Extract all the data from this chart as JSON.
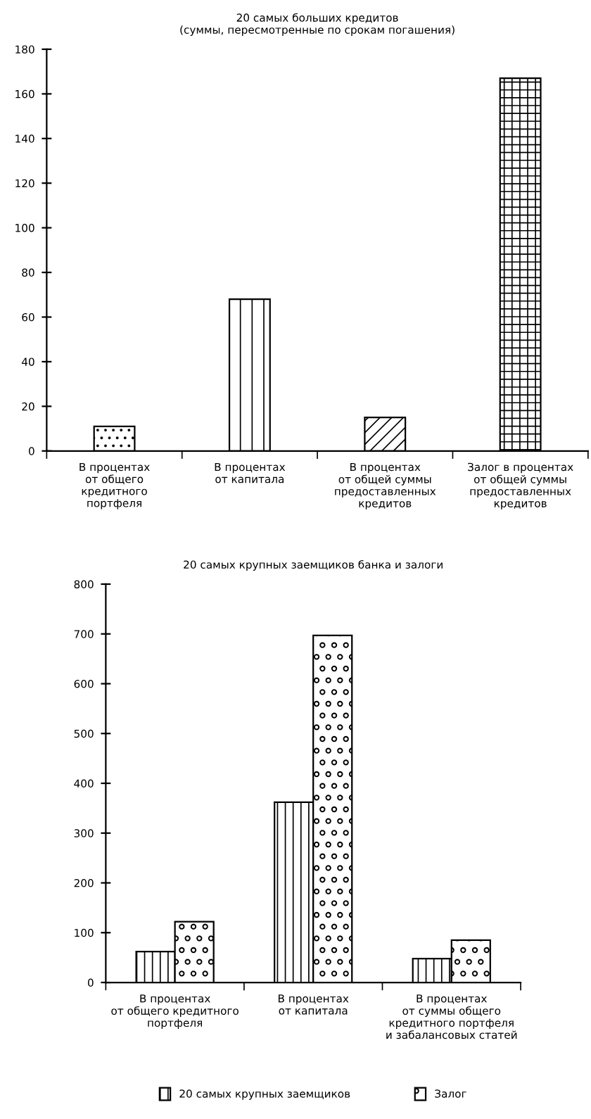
{
  "chart_data": [
    {
      "type": "bar",
      "title": "20 самых больших кредитов\n(суммы, пересмотренные по срокам погашения)",
      "categories": [
        "В процентах\nот общего\nкредитного\nпортфеля",
        "В процентах\nот капитала",
        "В процентах\nот общей суммы\nпредоставленных\nкредитов",
        "Залог в процентах\nот общей суммы\nпредоставленных\nкредитов"
      ],
      "values": [
        11,
        68,
        15,
        167
      ],
      "color": "#000000",
      "ylim": [
        0,
        180
      ],
      "yticks": [
        0,
        20,
        40,
        60,
        80,
        100,
        120,
        140,
        160,
        180
      ],
      "grid": false,
      "legend": false
    },
    {
      "type": "bar",
      "title": "20 самых крупных заемщиков банка и залоги",
      "categories": [
        "В процентах\nот общего кредитного\nпортфеля",
        "В процентах\nот капитала",
        "В процентах\nот суммы общего\nкредитного портфеля\nи забалансовых статей"
      ],
      "series": [
        {
          "name": "20 самых крупных заемщиков",
          "color": "#000000",
          "values": [
            62,
            362,
            48
          ]
        },
        {
          "name": "Залог",
          "color": "#000000",
          "values": [
            122,
            697,
            85
          ]
        }
      ],
      "ylim": [
        0,
        800
      ],
      "yticks": [
        0,
        100,
        200,
        300,
        400,
        500,
        600,
        700,
        800
      ],
      "grid": false,
      "legend": "bottom"
    }
  ]
}
